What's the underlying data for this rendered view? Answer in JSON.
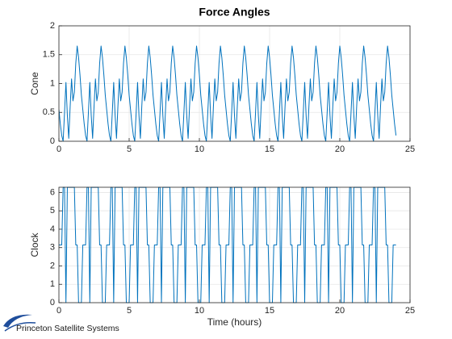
{
  "chart_data": [
    {
      "type": "line",
      "title": "Force Angles",
      "ylabel": "Cone",
      "color": "#0072bd",
      "xlim": [
        0,
        25
      ],
      "xticks": [
        0,
        5,
        10,
        15,
        20,
        25
      ],
      "ylim": [
        0,
        2
      ],
      "yticks": [
        0,
        0.5,
        1,
        1.5,
        2
      ],
      "grid": true,
      "x": [
        0,
        0.1,
        0.2,
        0.3,
        0.4,
        0.5,
        0.6,
        0.7,
        0.8,
        0.9,
        1,
        1.1,
        1.2,
        1.3,
        1.4,
        1.5,
        1.6,
        1.7,
        1.8,
        1.9,
        2,
        2.1,
        2.2,
        2.3,
        2.4,
        2.5,
        2.6,
        2.7,
        2.8,
        2.9,
        3,
        3.1,
        3.2,
        3.3,
        3.4,
        3.5,
        3.6,
        3.7,
        3.8,
        3.9,
        4,
        4.1,
        4.2,
        4.3,
        4.4,
        4.5,
        4.6,
        4.7,
        4.8,
        4.9,
        5,
        5.1,
        5.2,
        5.3,
        5.4,
        5.5,
        5.6,
        5.7,
        5.8,
        5.9,
        6,
        6.1,
        6.2,
        6.3,
        6.4,
        6.5,
        6.6,
        6.7,
        6.8,
        6.9,
        7,
        7.1,
        7.2,
        7.3,
        7.4,
        7.5,
        7.6,
        7.7,
        7.8,
        7.9,
        8,
        8.1,
        8.2,
        8.3,
        8.4,
        8.5,
        8.6,
        8.7,
        8.8,
        8.9,
        9,
        9.1,
        9.2,
        9.3,
        9.4,
        9.5,
        9.6,
        9.7,
        9.8,
        9.9,
        10,
        10.1,
        10.2,
        10.3,
        10.4,
        10.5,
        10.6,
        10.7,
        10.8,
        10.9,
        11,
        11.1,
        11.2,
        11.3,
        11.4,
        11.5,
        11.6,
        11.7,
        11.8,
        11.9,
        12,
        12.1,
        12.2,
        12.3,
        12.4,
        12.5,
        12.6,
        12.7,
        12.8,
        12.9,
        13,
        13.1,
        13.2,
        13.3,
        13.4,
        13.5,
        13.6,
        13.7,
        13.8,
        13.9,
        14,
        14.1,
        14.2,
        14.3,
        14.4,
        14.5,
        14.6,
        14.7,
        14.8,
        14.9,
        15,
        15.1,
        15.2,
        15.3,
        15.4,
        15.5,
        15.6,
        15.7,
        15.8,
        15.9,
        16,
        16.1,
        16.2,
        16.3,
        16.4,
        16.5,
        16.6,
        16.7,
        16.8,
        16.9,
        17,
        17.1,
        17.2,
        17.3,
        17.4,
        17.5,
        17.6,
        17.7,
        17.8,
        17.9,
        18,
        18.1,
        18.2,
        18.3,
        18.4,
        18.5,
        18.6,
        18.7,
        18.8,
        18.9,
        19,
        19.1,
        19.2,
        19.3,
        19.4,
        19.5,
        19.6,
        19.7,
        19.8,
        19.9,
        20,
        20.1,
        20.2,
        20.3,
        20.4,
        20.5,
        20.6,
        20.7,
        20.8,
        20.9,
        21,
        21.1,
        21.2,
        21.3,
        21.4,
        21.5,
        21.6,
        21.7,
        21.8,
        21.9,
        22,
        22.1,
        22.2,
        22.3,
        22.4,
        22.5,
        22.6,
        22.7,
        22.8,
        22.9,
        23,
        23.1,
        23.2,
        23.3,
        23.4,
        23.5,
        23.6,
        23.7,
        23.8,
        23.9,
        24
      ],
      "values": [
        0.55,
        0.3,
        0.1,
        0,
        0.5,
        1.02,
        0.45,
        0.05,
        0.6,
        1.08,
        0.7,
        0.85,
        1.35,
        1.65,
        1.45,
        1.15,
        0.8,
        0.55,
        0.3,
        0.1,
        0,
        0.5,
        1.02,
        0.45,
        0.05,
        0.6,
        1.08,
        0.7,
        0.85,
        1.35,
        1.65,
        1.45,
        1.15,
        0.8,
        0.55,
        0.3,
        0.1,
        0,
        0.5,
        1.02,
        0.45,
        0.05,
        0.6,
        1.08,
        0.7,
        0.85,
        1.35,
        1.65,
        1.45,
        1.15,
        0.8,
        0.55,
        0.3,
        0.1,
        0,
        0.5,
        1.02,
        0.45,
        0.05,
        0.6,
        1.08,
        0.7,
        0.85,
        1.35,
        1.65,
        1.45,
        1.15,
        0.8,
        0.55,
        0.3,
        0.1,
        0,
        0.5,
        1.02,
        0.45,
        0.05,
        0.6,
        1.08,
        0.7,
        0.85,
        1.35,
        1.65,
        1.45,
        1.15,
        0.8,
        0.55,
        0.3,
        0.1,
        0,
        0.5,
        1.02,
        0.45,
        0.05,
        0.6,
        1.08,
        0.7,
        0.85,
        1.35,
        1.65,
        1.45,
        1.15,
        0.8,
        0.55,
        0.3,
        0.1,
        0,
        0.5,
        1.02,
        0.45,
        0.05,
        0.6,
        1.08,
        0.7,
        0.85,
        1.35,
        1.65,
        1.45,
        1.15,
        0.8,
        0.55,
        0.3,
        0.1,
        0,
        0.5,
        1.02,
        0.45,
        0.05,
        0.6,
        1.08,
        0.7,
        0.85,
        1.35,
        1.65,
        1.45,
        1.15,
        0.8,
        0.55,
        0.3,
        0.1,
        0,
        0.5,
        1.02,
        0.45,
        0.05,
        0.6,
        1.08,
        0.7,
        0.85,
        1.35,
        1.65,
        1.45,
        1.15,
        0.8,
        0.55,
        0.3,
        0.1,
        0,
        0.5,
        1.02,
        0.45,
        0.05,
        0.6,
        1.08,
        0.7,
        0.85,
        1.35,
        1.65,
        1.45,
        1.15,
        0.8,
        0.55,
        0.3,
        0.1,
        0,
        0.5,
        1.02,
        0.45,
        0.05,
        0.6,
        1.08,
        0.7,
        0.85,
        1.35,
        1.65,
        1.45,
        1.15,
        0.8,
        0.55,
        0.3,
        0.1,
        0,
        0.5,
        1.02,
        0.45,
        0.05,
        0.6,
        1.08,
        0.7,
        0.85,
        1.35,
        1.65,
        1.45,
        1.15,
        0.8,
        0.55,
        0.3,
        0.1,
        0,
        0.5,
        1.02,
        0.45,
        0.05,
        0.6,
        1.08,
        0.7,
        0.85,
        1.35,
        1.65,
        1.45,
        1.15,
        0.8,
        0.55,
        0.3,
        0.1,
        0,
        0.5,
        1.02,
        0.45,
        0.05,
        0.6,
        1.08,
        0.7,
        0.85,
        1.35,
        1.65,
        1.45,
        1.15,
        0.8,
        0.55,
        0.3,
        0.1
      ]
    },
    {
      "type": "line",
      "ylabel": "Clock",
      "xlabel": "Time (hours)",
      "color": "#0072bd",
      "xlim": [
        0,
        25
      ],
      "xticks": [
        0,
        5,
        10,
        15,
        20,
        25
      ],
      "ylim": [
        0,
        6.2832
      ],
      "yticks": [
        0,
        1,
        2,
        3,
        4,
        5,
        6
      ],
      "grid": true,
      "x": [
        0,
        0.1,
        0.2,
        0.3,
        0.4,
        0.5,
        0.6,
        0.7,
        0.8,
        0.9,
        1,
        1.1,
        1.2,
        1.3,
        1.4,
        1.5,
        1.6,
        1.7,
        1.8,
        1.9,
        2,
        2.1,
        2.2,
        2.3,
        2.4,
        2.5,
        2.6,
        2.7,
        2.8,
        2.9,
        3,
        3.1,
        3.2,
        3.3,
        3.4,
        3.5,
        3.6,
        3.7,
        3.8,
        3.9,
        4,
        4.1,
        4.2,
        4.3,
        4.4,
        4.5,
        4.6,
        4.7,
        4.8,
        4.9,
        5,
        5.1,
        5.2,
        5.3,
        5.4,
        5.5,
        5.6,
        5.7,
        5.8,
        5.9,
        6,
        6.1,
        6.2,
        6.3,
        6.4,
        6.5,
        6.6,
        6.7,
        6.8,
        6.9,
        7,
        7.1,
        7.2,
        7.3,
        7.4,
        7.5,
        7.6,
        7.7,
        7.8,
        7.9,
        8,
        8.1,
        8.2,
        8.3,
        8.4,
        8.5,
        8.6,
        8.7,
        8.8,
        8.9,
        9,
        9.1,
        9.2,
        9.3,
        9.4,
        9.5,
        9.6,
        9.7,
        9.8,
        9.9,
        10,
        10.1,
        10.2,
        10.3,
        10.4,
        10.5,
        10.6,
        10.7,
        10.8,
        10.9,
        11,
        11.1,
        11.2,
        11.3,
        11.4,
        11.5,
        11.6,
        11.7,
        11.8,
        11.9,
        12,
        12.1,
        12.2,
        12.3,
        12.4,
        12.5,
        12.6,
        12.7,
        12.8,
        12.9,
        13,
        13.1,
        13.2,
        13.3,
        13.4,
        13.5,
        13.6,
        13.7,
        13.8,
        13.9,
        14,
        14.1,
        14.2,
        14.3,
        14.4,
        14.5,
        14.6,
        14.7,
        14.8,
        14.9,
        15,
        15.1,
        15.2,
        15.3,
        15.4,
        15.5,
        15.6,
        15.7,
        15.8,
        15.9,
        16,
        16.1,
        16.2,
        16.3,
        16.4,
        16.5,
        16.6,
        16.7,
        16.8,
        16.9,
        17,
        17.1,
        17.2,
        17.3,
        17.4,
        17.5,
        17.6,
        17.7,
        17.8,
        17.9,
        18,
        18.1,
        18.2,
        18.3,
        18.4,
        18.5,
        18.6,
        18.7,
        18.8,
        18.9,
        19,
        19.1,
        19.2,
        19.3,
        19.4,
        19.5,
        19.6,
        19.7,
        19.8,
        19.9,
        20,
        20.1,
        20.2,
        20.3,
        20.4,
        20.5,
        20.6,
        20.7,
        20.8,
        20.9,
        21,
        21.1,
        21.2,
        21.3,
        21.4,
        21.5,
        21.6,
        21.7,
        21.8,
        21.9,
        22,
        22.1,
        22.2,
        22.3,
        22.4,
        22.5,
        22.6,
        22.7,
        22.8,
        22.9,
        23,
        23.1,
        23.2,
        23.3,
        23.4,
        23.5,
        23.6,
        23.7,
        23.8,
        23.9,
        24
      ],
      "values": [
        3.14,
        3.14,
        3.14,
        6.28,
        6.28,
        0,
        6.28,
        6.28,
        6.28,
        6.28,
        6.28,
        6.28,
        3.14,
        3.14,
        0,
        0,
        0,
        3.14,
        3.14,
        3.14,
        6.28,
        6.28,
        0,
        6.28,
        6.28,
        6.28,
        6.28,
        6.28,
        6.28,
        3.14,
        3.14,
        0,
        0,
        0,
        3.14,
        3.14,
        3.14,
        6.28,
        6.28,
        0,
        6.28,
        6.28,
        6.28,
        6.28,
        6.28,
        6.28,
        3.14,
        3.14,
        0,
        0,
        0,
        3.14,
        3.14,
        3.14,
        6.28,
        6.28,
        0,
        6.28,
        6.28,
        6.28,
        6.28,
        6.28,
        6.28,
        3.14,
        3.14,
        0,
        0,
        0,
        3.14,
        3.14,
        3.14,
        6.28,
        6.28,
        0,
        6.28,
        6.28,
        6.28,
        6.28,
        6.28,
        6.28,
        3.14,
        3.14,
        0,
        0,
        0,
        3.14,
        3.14,
        3.14,
        6.28,
        6.28,
        0,
        6.28,
        6.28,
        6.28,
        6.28,
        6.28,
        6.28,
        3.14,
        3.14,
        0,
        0,
        0,
        3.14,
        3.14,
        3.14,
        6.28,
        6.28,
        0,
        6.28,
        6.28,
        6.28,
        6.28,
        6.28,
        6.28,
        3.14,
        3.14,
        0,
        0,
        0,
        3.14,
        3.14,
        3.14,
        6.28,
        6.28,
        0,
        6.28,
        6.28,
        6.28,
        6.28,
        6.28,
        6.28,
        3.14,
        3.14,
        0,
        0,
        0,
        3.14,
        3.14,
        3.14,
        6.28,
        6.28,
        0,
        6.28,
        6.28,
        6.28,
        6.28,
        6.28,
        6.28,
        3.14,
        3.14,
        0,
        0,
        0,
        3.14,
        3.14,
        3.14,
        6.28,
        6.28,
        0,
        6.28,
        6.28,
        6.28,
        6.28,
        6.28,
        6.28,
        3.14,
        3.14,
        0,
        0,
        0,
        3.14,
        3.14,
        3.14,
        6.28,
        6.28,
        0,
        6.28,
        6.28,
        6.28,
        6.28,
        6.28,
        6.28,
        3.14,
        3.14,
        0,
        0,
        0,
        3.14,
        3.14,
        3.14,
        6.28,
        6.28,
        0,
        6.28,
        6.28,
        6.28,
        6.28,
        6.28,
        6.28,
        3.14,
        3.14,
        0,
        0,
        0,
        3.14,
        3.14,
        3.14,
        6.28,
        6.28,
        0,
        6.28,
        6.28,
        6.28,
        6.28,
        6.28,
        6.28,
        3.14,
        3.14,
        0,
        0,
        0,
        3.14,
        3.14,
        3.14,
        6.28,
        6.28,
        0,
        6.28,
        6.28,
        6.28,
        6.28,
        6.28,
        6.28,
        3.14,
        3.14,
        0,
        0,
        0,
        3.14,
        3.14,
        3.14
      ]
    }
  ],
  "footer": {
    "logo": "Princeton Satellite Systems"
  }
}
